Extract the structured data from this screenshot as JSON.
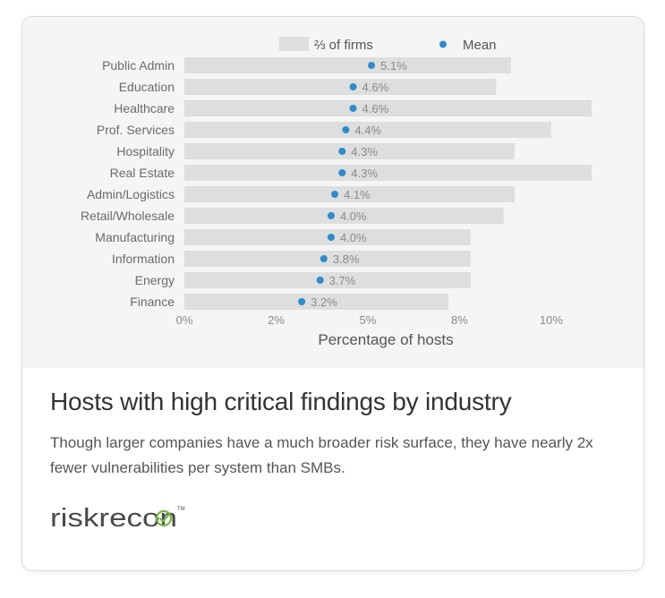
{
  "chart_data": {
    "type": "bar",
    "orientation": "horizontal",
    "categories": [
      "Public Admin",
      "Education",
      "Healthcare",
      "Prof. Services",
      "Hospitality",
      "Real Estate",
      "Admin/Logistics",
      "Retail/Wholesale",
      "Manufacturing",
      "Information",
      "Energy",
      "Finance"
    ],
    "series": [
      {
        "name": "⅔ of firms",
        "kind": "range-bar",
        "values": [
          8.9,
          8.5,
          11.1,
          10.0,
          9.0,
          11.1,
          9.0,
          8.7,
          7.8,
          7.8,
          7.8,
          7.2
        ]
      },
      {
        "name": "Mean",
        "kind": "point",
        "values": [
          5.1,
          4.6,
          4.6,
          4.4,
          4.3,
          4.3,
          4.1,
          4.0,
          4.0,
          3.8,
          3.7,
          3.2
        ],
        "labels": [
          "5.1%",
          "4.6%",
          "4.6%",
          "4.4%",
          "4.3%",
          "4.3%",
          "4.1%",
          "4.0%",
          "4.0%",
          "3.8%",
          "3.7%",
          "3.2%"
        ]
      }
    ],
    "xlabel": "Percentage of hosts",
    "ylabel": "",
    "xlim": [
      0,
      11.1
    ],
    "xticks": [
      0,
      2.5,
      5,
      7.5,
      10
    ],
    "xtick_labels": [
      "0%",
      "2%",
      "5%",
      "8%",
      "10%"
    ],
    "grid": false,
    "legend_position": "top",
    "colors": {
      "bar": "#dedede",
      "point": "#2f8cc9",
      "label": "#8a8a8a",
      "category": "#6a6a6a",
      "background": "#f5f5f5"
    }
  },
  "caption": {
    "title": "Hosts with high critical findings by industry",
    "text": "Though larger companies have a much broader risk surface, they have nearly 2x fewer vulnerabilities per system than SMBs."
  },
  "logo": {
    "text": "riskrecon",
    "icon": "check-circle-icon",
    "color": "#4a4a4a",
    "accent": "#7ab648"
  }
}
